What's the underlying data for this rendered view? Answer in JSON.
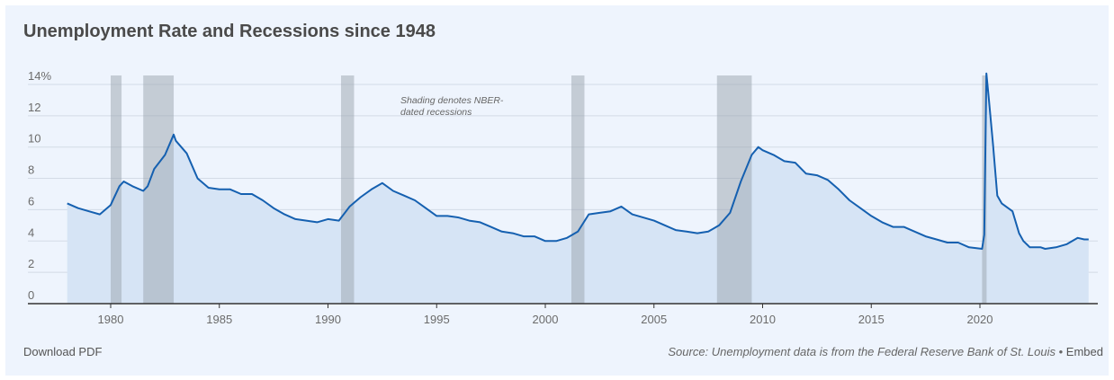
{
  "title": "Unemployment Rate and Recessions since 1948",
  "footer": {
    "download": "Download PDF",
    "source": "Source: Unemployment data is from the Federal Reserve Bank of St. Louis",
    "separator": " • ",
    "embed": "Embed"
  },
  "chart_data": {
    "type": "area",
    "title": "Unemployment Rate and Recessions since 1948",
    "xlim": [
      1976,
      2025.3
    ],
    "ylim": [
      0,
      14.5
    ],
    "x_ticks": [
      1980,
      1985,
      1990,
      1995,
      2000,
      2005,
      2010,
      2015,
      2020
    ],
    "y_ticks": [
      0,
      2,
      4,
      6,
      8,
      10,
      12,
      14
    ],
    "y_tick_labels": [
      "0",
      "2",
      "4",
      "6",
      "8",
      "10",
      "12",
      "14%"
    ],
    "grid": true,
    "annotation": [
      "Shading denotes NBER-",
      "dated recessions"
    ],
    "colors": {
      "line": "#1560b0",
      "fill": "#d6e4f5",
      "recession": "#9aa3ae"
    },
    "recessions": [
      [
        1980.0,
        1980.5
      ],
      [
        1981.5,
        1982.9
      ],
      [
        1990.6,
        1991.2
      ],
      [
        2001.2,
        2001.8
      ],
      [
        2007.9,
        2009.5
      ],
      [
        2020.1,
        2020.3
      ]
    ],
    "series": [
      {
        "x": [
          1978.0,
          1978.5,
          1979.0,
          1979.5,
          1980.0,
          1980.4,
          1980.6,
          1981.0,
          1981.5,
          1981.7,
          1982.0,
          1982.5,
          1982.9,
          1983.0,
          1983.5,
          1984.0,
          1984.5,
          1985.0,
          1985.5,
          1986.0,
          1986.5,
          1987.0,
          1987.5,
          1988.0,
          1988.5,
          1989.0,
          1989.5,
          1990.0,
          1990.5,
          1991.0,
          1991.5,
          1992.0,
          1992.5,
          1993.0,
          1993.5,
          1994.0,
          1994.5,
          1995.0,
          1995.5,
          1996.0,
          1996.5,
          1997.0,
          1997.5,
          1998.0,
          1998.5,
          1999.0,
          1999.5,
          2000.0,
          2000.5,
          2001.0,
          2001.5,
          2002.0,
          2002.5,
          2003.0,
          2003.5,
          2004.0,
          2004.5,
          2005.0,
          2005.5,
          2006.0,
          2006.5,
          2007.0,
          2007.5,
          2008.0,
          2008.5,
          2009.0,
          2009.5,
          2009.8,
          2010.0,
          2010.5,
          2011.0,
          2011.5,
          2012.0,
          2012.5,
          2013.0,
          2013.5,
          2014.0,
          2014.5,
          2015.0,
          2015.5,
          2016.0,
          2016.5,
          2017.0,
          2017.5,
          2018.0,
          2018.5,
          2019.0,
          2019.5,
          2020.1,
          2020.2,
          2020.3,
          2020.4,
          2020.6,
          2020.8,
          2021.0,
          2021.5,
          2021.8,
          2022.0,
          2022.3,
          2022.8,
          2023.0,
          2023.5,
          2024.0,
          2024.5,
          2024.8,
          2025.0
        ],
        "y": [
          6.4,
          6.1,
          5.9,
          5.7,
          6.3,
          7.5,
          7.8,
          7.5,
          7.2,
          7.5,
          8.6,
          9.5,
          10.8,
          10.4,
          9.6,
          8.0,
          7.4,
          7.3,
          7.3,
          7.0,
          7.0,
          6.6,
          6.1,
          5.7,
          5.4,
          5.3,
          5.2,
          5.4,
          5.3,
          6.2,
          6.8,
          7.3,
          7.7,
          7.2,
          6.9,
          6.6,
          6.1,
          5.6,
          5.6,
          5.5,
          5.3,
          5.2,
          4.9,
          4.6,
          4.5,
          4.3,
          4.3,
          4.0,
          4.0,
          4.2,
          4.6,
          5.7,
          5.8,
          5.9,
          6.2,
          5.7,
          5.5,
          5.3,
          5.0,
          4.7,
          4.6,
          4.5,
          4.6,
          5.0,
          5.8,
          7.8,
          9.5,
          10.0,
          9.8,
          9.5,
          9.1,
          9.0,
          8.3,
          8.2,
          7.9,
          7.3,
          6.6,
          6.1,
          5.6,
          5.2,
          4.9,
          4.9,
          4.6,
          4.3,
          4.1,
          3.9,
          3.9,
          3.6,
          3.5,
          4.4,
          14.7,
          13.2,
          10.2,
          6.9,
          6.4,
          5.9,
          4.5,
          4.0,
          3.6,
          3.6,
          3.5,
          3.6,
          3.8,
          4.2,
          4.1,
          4.1
        ]
      }
    ]
  }
}
